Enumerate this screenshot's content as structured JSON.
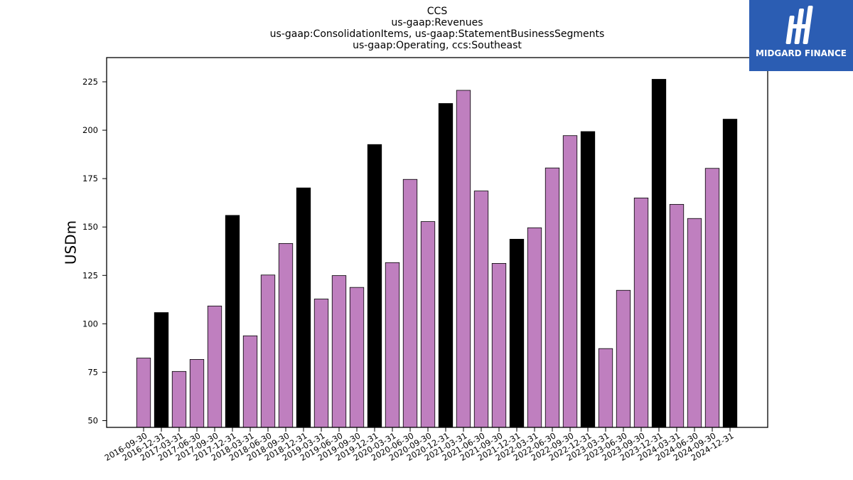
{
  "chart_data": {
    "type": "bar",
    "title_lines": [
      "CCS",
      "us-gaap:Revenues",
      "us-gaap:ConsolidationItems, us-gaap:StatementBusinessSegments",
      "us-gaap:Operating, ccs:Southeast"
    ],
    "xlabel": "",
    "ylabel": "USDm",
    "ylim": [
      46.5,
      237.5
    ],
    "yticks": [
      50,
      75,
      100,
      125,
      150,
      175,
      200,
      225
    ],
    "grid": false,
    "categories": [
      "2016-09-30",
      "2016-12-31",
      "2017-03-31",
      "2017-06-30",
      "2017-09-30",
      "2017-12-31",
      "2018-03-31",
      "2018-06-30",
      "2018-09-30",
      "2018-12-31",
      "2019-03-31",
      "2019-06-30",
      "2019-09-30",
      "2019-12-31",
      "2020-03-31",
      "2020-06-30",
      "2020-09-30",
      "2020-12-31",
      "2021-03-31",
      "2021-06-30",
      "2021-09-30",
      "2021-12-31",
      "2022-03-31",
      "2022-06-30",
      "2022-09-30",
      "2022-12-31",
      "2023-03-31",
      "2023-06-30",
      "2023-09-30",
      "2023-12-31",
      "2024-03-31",
      "2024-06-30",
      "2024-09-30",
      "2024-12-31"
    ],
    "values": [
      82.3,
      105.8,
      75.4,
      81.6,
      109.2,
      156.0,
      93.8,
      125.2,
      141.5,
      170.2,
      112.8,
      124.9,
      118.8,
      192.6,
      131.6,
      174.6,
      152.8,
      213.8,
      220.6,
      168.6,
      131.2,
      143.7,
      149.6,
      180.5,
      197.2,
      199.3,
      87.2,
      117.3,
      165.0,
      226.3,
      161.7,
      154.4,
      180.3,
      205.7
    ],
    "colors": {
      "quarter_bar": "#bf7fbf",
      "year_end_bar": "#000000",
      "edge": "#000000"
    }
  },
  "logo": {
    "text": "MIDGARD FINANCE",
    "background": "#2b5db3"
  }
}
